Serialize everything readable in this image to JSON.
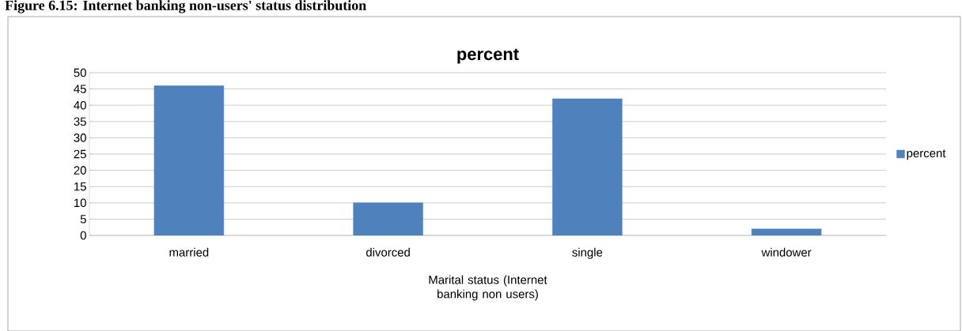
{
  "chart_data": {
    "type": "bar",
    "title": "percent",
    "xlabel": "Marital status (Internet banking non users)",
    "categories": [
      "married",
      "divorced",
      "single",
      "windower"
    ],
    "series": [
      {
        "name": "percent",
        "color": "#4f81bd",
        "values": [
          46,
          10,
          42,
          2
        ]
      }
    ],
    "ylim": [
      0,
      50
    ],
    "yticks": [
      0,
      5,
      10,
      15,
      20,
      25,
      30,
      35,
      40,
      45,
      50
    ],
    "grid": "y",
    "legend": "right",
    "annotations": [
      "Figure 6.15: Internet banking non-users' status distribution"
    ]
  }
}
